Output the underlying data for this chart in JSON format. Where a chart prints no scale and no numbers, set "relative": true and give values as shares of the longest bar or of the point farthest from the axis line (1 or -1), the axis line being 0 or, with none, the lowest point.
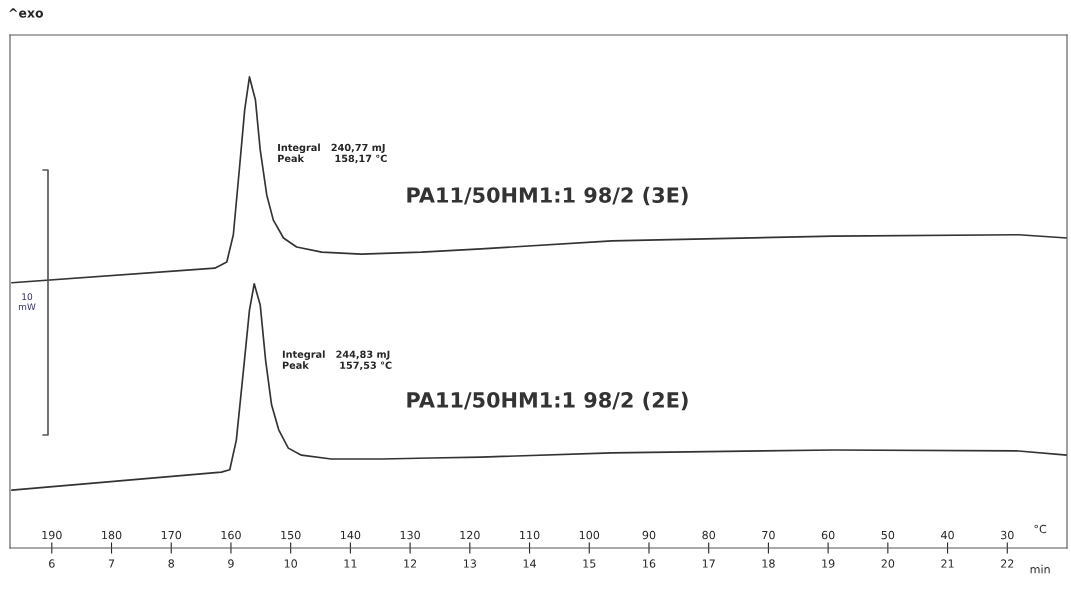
{
  "chart_data": {
    "type": "line",
    "relative": true,
    "xlabel": "min",
    "x2label": "°C",
    "xlim": [
      5.3,
      23
    ],
    "xticks": [
      6,
      7,
      8,
      9,
      10,
      11,
      12,
      13,
      14,
      15,
      16,
      17,
      18,
      19,
      20,
      21,
      22
    ],
    "x2lim": [
      197,
      20
    ],
    "x2ticks": [
      190,
      180,
      170,
      160,
      150,
      140,
      130,
      120,
      110,
      100,
      90,
      80,
      70,
      60,
      50,
      40,
      30
    ],
    "grid": false,
    "legend": false,
    "marker": "none",
    "line_style": "solid",
    "series": [
      {
        "name": "PA11/50HM1:1 98/2 (3E)",
        "color": "#333333",
        "x": [
          5.33,
          8.73,
          8.93,
          9.04,
          9.14,
          9.23,
          9.31,
          9.41,
          9.49,
          9.6,
          9.71,
          9.88,
          10.1,
          10.52,
          11.18,
          12.19,
          13.19,
          15.38,
          19.09,
          22.19,
          23.0
        ],
        "values": [
          0.563,
          0.594,
          0.607,
          0.665,
          0.803,
          0.93,
          1.0,
          0.951,
          0.845,
          0.749,
          0.696,
          0.658,
          0.639,
          0.628,
          0.624,
          0.628,
          0.635,
          0.652,
          0.662,
          0.665,
          0.658
        ]
      },
      {
        "name": "PA11/50HM1:1 98/2 (2E)",
        "color": "#333333",
        "x": [
          5.33,
          8.84,
          8.98,
          9.09,
          9.21,
          9.31,
          9.39,
          9.49,
          9.58,
          9.68,
          9.8,
          9.96,
          10.18,
          10.68,
          11.52,
          12.35,
          13.19,
          15.38,
          19.09,
          22.19,
          23.0
        ],
        "values": [
          0.123,
          0.161,
          0.166,
          0.229,
          0.378,
          0.505,
          0.561,
          0.516,
          0.399,
          0.304,
          0.251,
          0.212,
          0.197,
          0.189,
          0.189,
          0.191,
          0.193,
          0.202,
          0.208,
          0.206,
          0.197
        ]
      }
    ],
    "annotations": [
      "^exo",
      "10 mW",
      "Integral   240,77 mJ\nPeak         158,17 °C",
      "Integral   244,83 mJ\nPeak         157,53 °C"
    ]
  }
}
